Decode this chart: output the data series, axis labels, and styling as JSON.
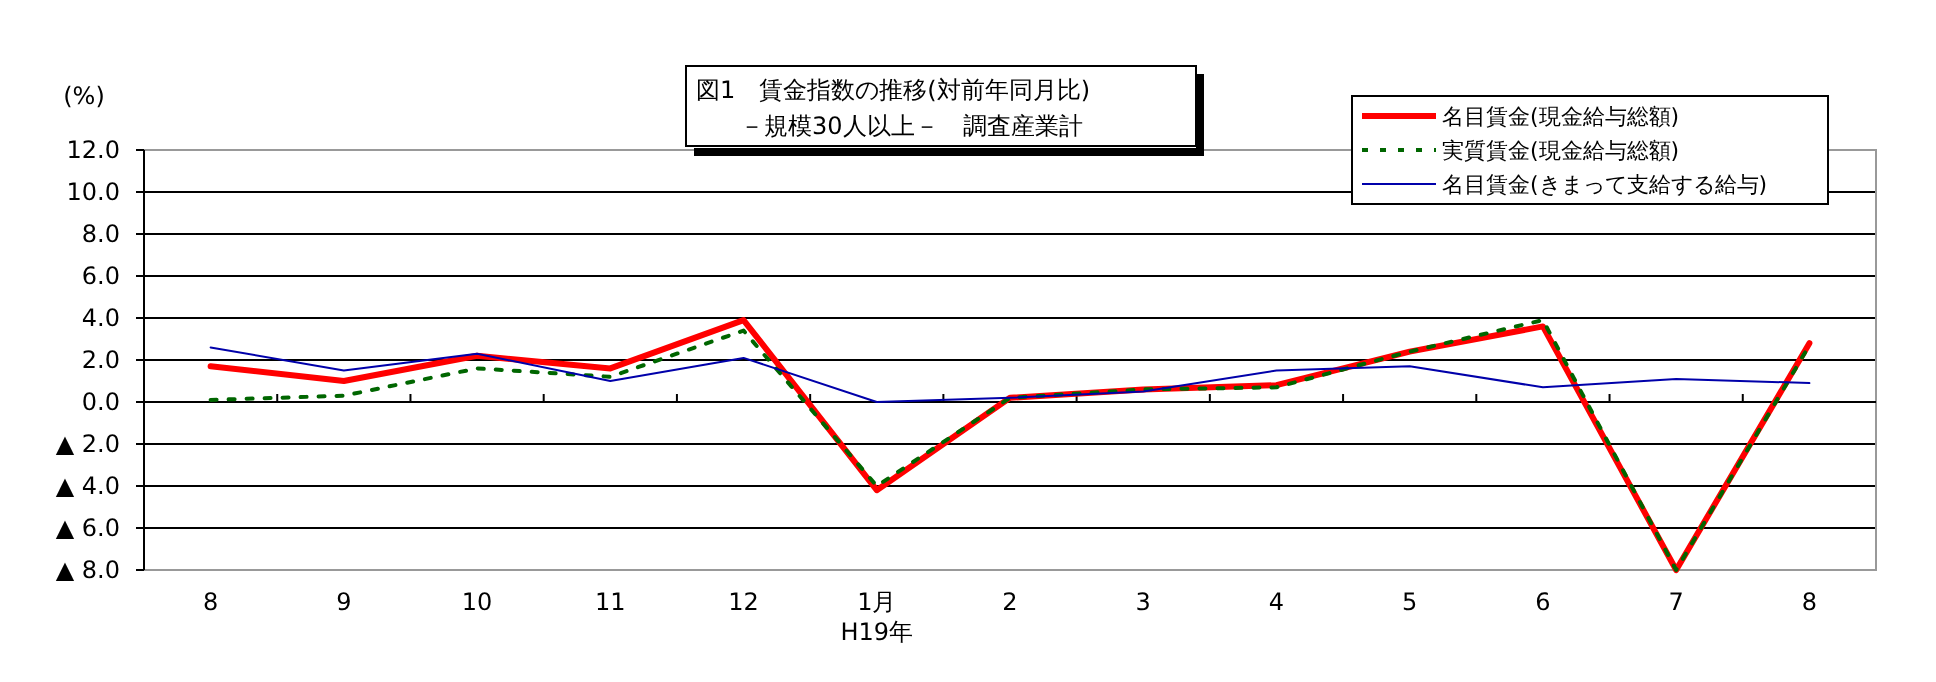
{
  "chart_data": {
    "type": "line",
    "title": "図1　賃金指数の推移(対前年同月比)",
    "subtitle": "－規模30人以上－　調査産業計",
    "ylabel": "(%)",
    "categories": [
      "8",
      "9",
      "10",
      "11",
      "12",
      "1月\nH19年",
      "2",
      "3",
      "4",
      "5",
      "6",
      "7",
      "8"
    ],
    "series": [
      {
        "name": "名目賃金(現金給与総額)",
        "color": "#ff0000",
        "line_style": "solid",
        "values": [
          1.7,
          1.0,
          2.2,
          1.6,
          3.9,
          -4.2,
          0.2,
          0.6,
          0.8,
          2.4,
          3.6,
          -8.0,
          2.8
        ]
      },
      {
        "name": "実質賃金(現金給与総額)",
        "color": "#006600",
        "line_style": "dotted",
        "values": [
          0.1,
          0.3,
          1.6,
          1.2,
          3.4,
          -4.0,
          0.2,
          0.6,
          0.7,
          2.4,
          3.9,
          -8.0,
          2.7
        ]
      },
      {
        "name": "名目賃金(きまって支給する給与)",
        "color": "#0000aa",
        "line_style": "solid",
        "values": [
          2.6,
          1.5,
          2.3,
          1.0,
          2.1,
          0.0,
          0.2,
          0.5,
          1.5,
          1.7,
          0.7,
          1.1,
          0.9
        ]
      }
    ],
    "ylim": [
      -8,
      12
    ],
    "yticks": [
      {
        "value": -8,
        "label": "▲ 8.0"
      },
      {
        "value": -6,
        "label": "▲ 6.0"
      },
      {
        "value": -4,
        "label": "▲ 4.0"
      },
      {
        "value": -2,
        "label": "▲ 2.0"
      },
      {
        "value": 0,
        "label": "0.0"
      },
      {
        "value": 2,
        "label": "2.0"
      },
      {
        "value": 4,
        "label": "4.0"
      },
      {
        "value": 6,
        "label": "6.0"
      },
      {
        "value": 8,
        "label": "8.0"
      },
      {
        "value": 10,
        "label": "10.0"
      },
      {
        "value": 12,
        "label": "12.0"
      }
    ],
    "grid": "y",
    "legend": "top right",
    "marker": "none"
  }
}
